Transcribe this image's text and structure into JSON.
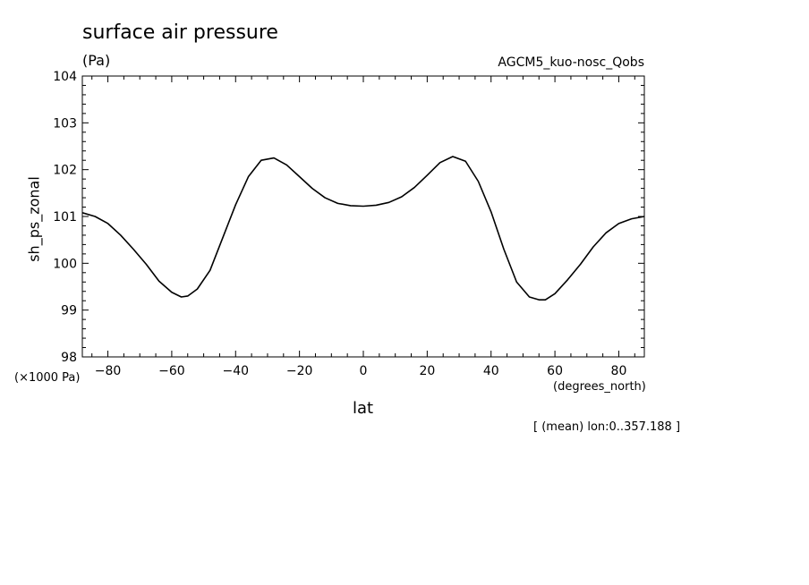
{
  "title": "surface air pressure",
  "units": "(Pa)",
  "run_label": "AGCM5_kuo-nosc_Qobs",
  "y_scale_note": "(×1000 Pa)",
  "x_unit": "(degrees_north)",
  "x_axis_title": "lat",
  "y_axis_title": "sh_ps_zonal",
  "averaging_note": "[ (mean) lon:0..357.188 ]",
  "chart_data": {
    "type": "line",
    "title": "surface air pressure",
    "xlabel": "lat",
    "ylabel": "sh_ps_zonal",
    "xlim": [
      -88,
      88
    ],
    "ylim": [
      98,
      104
    ],
    "x_ticks": [
      -80,
      -60,
      -40,
      -20,
      0,
      20,
      40,
      60,
      80
    ],
    "y_ticks": [
      98,
      99,
      100,
      101,
      102,
      103,
      104
    ],
    "grid": false,
    "series": [
      {
        "x": [
          -88,
          -84,
          -80,
          -76,
          -72,
          -68,
          -64,
          -60,
          -57,
          -55,
          -52,
          -48,
          -44,
          -40,
          -36,
          -32,
          -28,
          -24,
          -20,
          -16,
          -12,
          -8,
          -4,
          0,
          4,
          8,
          12,
          16,
          20,
          24,
          28,
          32,
          36,
          40,
          44,
          48,
          52,
          55,
          57,
          60,
          64,
          68,
          72,
          76,
          80,
          84,
          88
        ],
        "y": [
          101.08,
          101.0,
          100.85,
          100.6,
          100.3,
          99.98,
          99.62,
          99.38,
          99.28,
          99.3,
          99.45,
          99.85,
          100.55,
          101.25,
          101.85,
          102.2,
          102.25,
          102.1,
          101.85,
          101.6,
          101.4,
          101.28,
          101.23,
          101.22,
          101.24,
          101.3,
          101.42,
          101.62,
          101.88,
          102.15,
          102.28,
          102.18,
          101.75,
          101.1,
          100.3,
          99.6,
          99.28,
          99.22,
          99.22,
          99.35,
          99.65,
          99.98,
          100.35,
          100.65,
          100.85,
          100.95,
          101.0
        ]
      }
    ]
  }
}
